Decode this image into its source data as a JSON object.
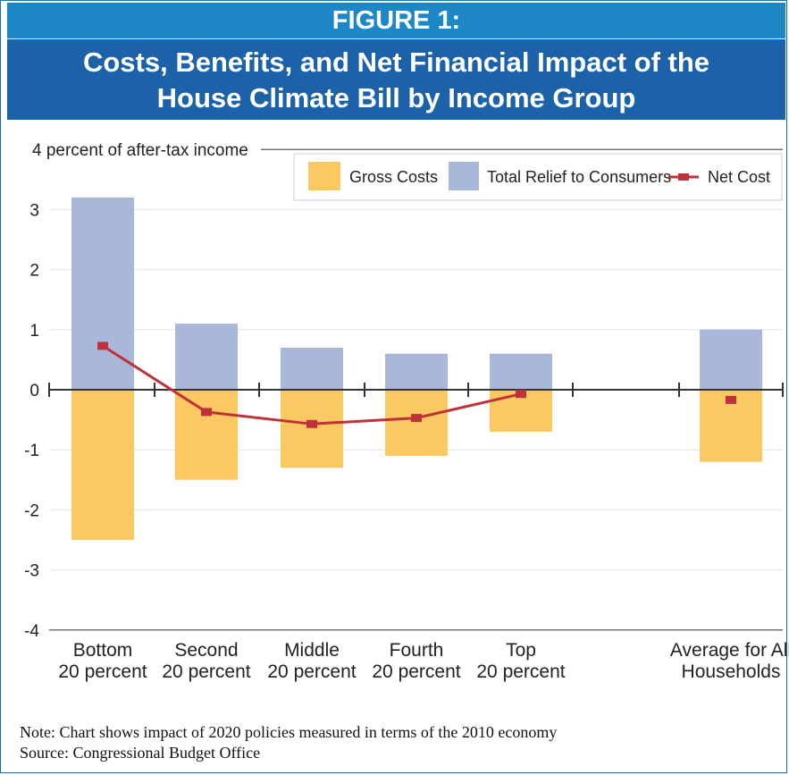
{
  "figure": {
    "label": "FIGURE 1:",
    "title_line1": "Costs, Benefits, and Net Financial Impact of the",
    "title_line2": "House Climate Bill by Income Group"
  },
  "chart_data": {
    "type": "bar",
    "ylabel": "4 percent of after-tax income",
    "ylim": [
      -4,
      4
    ],
    "yticks": [
      3,
      2,
      1,
      0,
      -1,
      -2,
      -3,
      -4
    ],
    "categories": [
      [
        "Bottom",
        "20 percent"
      ],
      [
        "Second",
        "20 percent"
      ],
      [
        "Middle",
        "20 percent"
      ],
      [
        "Fourth",
        "20 percent"
      ],
      [
        "Top",
        "20 percent"
      ],
      [
        "Average for All",
        "Households"
      ]
    ],
    "series": [
      {
        "name": "Gross Costs",
        "type": "bar",
        "color": "#fcc862",
        "values": [
          -2.5,
          -1.5,
          -1.3,
          -1.1,
          -0.7,
          -1.2
        ]
      },
      {
        "name": "Total Relief to Consumers",
        "type": "bar",
        "color": "#a9b7da",
        "values": [
          3.2,
          1.1,
          0.7,
          0.6,
          0.6,
          1.0
        ]
      },
      {
        "name": "Net Cost",
        "type": "line",
        "color": "#c0323a",
        "values": [
          0.73,
          -0.37,
          -0.57,
          -0.47,
          -0.07,
          -0.17
        ],
        "connected": [
          true,
          true,
          true,
          true,
          true,
          false
        ]
      }
    ],
    "legend_position": "top-right",
    "grid": true
  },
  "notes": {
    "note": "Note:  Chart shows impact of 2020 policies measured in terms of the 2010 economy",
    "source": "Source:  Congressional Budget Office"
  }
}
